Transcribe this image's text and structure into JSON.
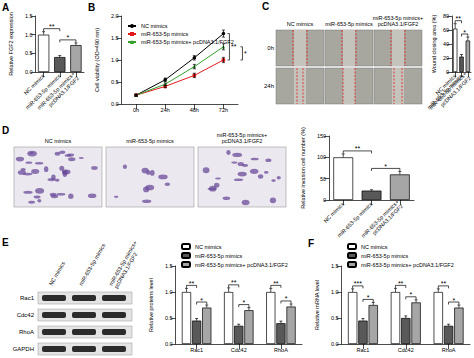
{
  "chart_data": [
    {
      "panel": "A",
      "type": "bar",
      "categories": [
        "NC mimics",
        "miR-653-5p mimics",
        "miR-653-5p mimics+ pcDNA3.1/FGF2"
      ],
      "values": [
        1.0,
        0.4,
        0.72
      ],
      "errors": [
        0.08,
        0.04,
        0.06
      ],
      "colors": [
        "#ffffff",
        "#595959",
        "#a6a6a6"
      ],
      "y_label": "Relative FGF2 expression",
      "ylim": [
        0,
        1.5
      ],
      "yticks": [
        {
          "value": 0,
          "label": "0.0"
        },
        0.5,
        {
          "value": 1,
          "label": "1.0"
        },
        1.5
      ],
      "grid": false,
      "annotations": [
        {
          "text": "**",
          "between": [
            0,
            1
          ]
        },
        {
          "text": "*",
          "between": [
            1,
            2
          ]
        }
      ]
    },
    {
      "panel": "B",
      "type": "line",
      "categories": [
        "0h",
        "24h",
        "48h",
        "72h"
      ],
      "series": [
        {
          "name": "NC mimics",
          "color": "#000000",
          "marker": "circle",
          "values": [
            0.2,
            0.55,
            1.05,
            1.6
          ],
          "errors": [
            0.02,
            0.04,
            0.05,
            0.08
          ]
        },
        {
          "name": "miR-653-5p mimics",
          "color": "#e31a1c",
          "marker": "rect",
          "values": [
            0.2,
            0.4,
            0.65,
            1.0
          ],
          "errors": [
            0.02,
            0.03,
            0.05,
            0.06
          ]
        },
        {
          "name": "miR-653-5p mimics+ pcDNA3.1/FGF2",
          "color": "#33a02c",
          "marker": "triangle",
          "values": [
            0.2,
            0.45,
            0.85,
            1.3
          ],
          "errors": [
            0.02,
            0.03,
            0.05,
            0.07
          ]
        }
      ],
      "y_label": "Cell viability (OD=490 nm)",
      "ylim": [
        0,
        2
      ],
      "yticks": [
        {
          "value": 0,
          "label": "0.0"
        },
        0.5,
        {
          "value": 1,
          "label": "1.0"
        },
        1.5,
        {
          "value": 2,
          "label": "2.0"
        }
      ],
      "legend": "upper left",
      "grid": false,
      "annotations": [
        {
          "text": "**",
          "group": 3,
          "between": [
            0,
            1
          ]
        },
        {
          "text": "*",
          "group": 3,
          "between": [
            1,
            2
          ]
        }
      ]
    },
    {
      "type": "bar",
      "categories": [
        "NC mimics",
        "miR-653-5p mimics",
        "miR-653-5p mimics+ pcDNA3.1/FGF2"
      ],
      "values": [
        62,
        22,
        45
      ],
      "errors": [
        7,
        3,
        5
      ],
      "colors": [
        "#ffffff",
        "#595959",
        "#a6a6a6"
      ],
      "y_label": "Wound closing area (%)",
      "ylim": [
        0,
        80
      ],
      "yticks": [
        0,
        20,
        40,
        60,
        80
      ],
      "grid": false,
      "annotations": [
        {
          "text": "**",
          "between": [
            0,
            1
          ]
        },
        {
          "text": "*",
          "between": [
            1,
            2
          ]
        }
      ]
    },
    {
      "type": "bar",
      "categories": [
        "NC mimics",
        "miR-653-5p mimics",
        "miR-653-5p mimics+ pcDNA3.1/FGF2"
      ],
      "values": [
        100,
        22,
        60
      ],
      "errors": [
        8,
        2,
        7
      ],
      "colors": [
        "#ffffff",
        "#595959",
        "#a6a6a6"
      ],
      "y_label": "Relative invasion cell number (%)",
      "ylim": [
        0,
        150
      ],
      "yticks": [
        0,
        50,
        100,
        150
      ],
      "grid": false,
      "annotations": [
        {
          "text": "**",
          "between": [
            0,
            1
          ]
        },
        {
          "text": "*",
          "between": [
            1,
            2
          ]
        }
      ]
    },
    {
      "type": "bar",
      "categories": [
        "Rac1",
        "Cdc42",
        "RhoA"
      ],
      "series": [
        {
          "name": "NC mimics",
          "color": "#ffffff",
          "values": [
            1.0,
            1.0,
            1.0
          ],
          "errors": [
            0.07,
            0.08,
            0.07
          ]
        },
        {
          "name": "miR-653-5p mimics",
          "color": "#595959",
          "values": [
            0.45,
            0.35,
            0.4
          ],
          "errors": [
            0.04,
            0.03,
            0.04
          ]
        },
        {
          "name": "miR-653-5p mimics+ pcDNA3.1/FGF2",
          "color": "#a6a6a6",
          "values": [
            0.7,
            0.65,
            0.72
          ],
          "errors": [
            0.05,
            0.05,
            0.05
          ]
        }
      ],
      "y_label": "Relative proteins level",
      "ylim": [
        0,
        1.5
      ],
      "yticks": [
        {
          "value": 0,
          "label": "0.0"
        },
        0.5,
        {
          "value": 1,
          "label": "1.0"
        },
        1.5
      ],
      "legend": "top",
      "grid": false,
      "annotations": [
        {
          "text": "**",
          "group": 0,
          "between": [
            0,
            1
          ]
        },
        {
          "text": "*",
          "group": 0,
          "between": [
            1,
            2
          ]
        },
        {
          "text": "**",
          "group": 1,
          "between": [
            0,
            1
          ]
        },
        {
          "text": "*",
          "group": 1,
          "between": [
            1,
            2
          ]
        },
        {
          "text": "**",
          "group": 2,
          "between": [
            0,
            1
          ]
        },
        {
          "text": "*",
          "group": 2,
          "between": [
            1,
            2
          ]
        }
      ]
    },
    {
      "panel": "F",
      "type": "bar",
      "categories": [
        "Rac1",
        "Cdc42",
        "RhoA"
      ],
      "series": [
        {
          "name": "NC mimics",
          "color": "#ffffff",
          "values": [
            1.0,
            1.0,
            1.0
          ],
          "errors": [
            0.06,
            0.07,
            0.06
          ]
        },
        {
          "name": "miR-653-5p mimics",
          "color": "#595959",
          "values": [
            0.45,
            0.5,
            0.35
          ],
          "errors": [
            0.04,
            0.04,
            0.03
          ]
        },
        {
          "name": "miR-653-5p mimics+ pcDNA3.1/FGF2",
          "color": "#a6a6a6",
          "values": [
            0.75,
            0.8,
            0.7
          ],
          "errors": [
            0.05,
            0.05,
            0.05
          ]
        }
      ],
      "y_label": "Relative mRNA level",
      "ylim": [
        0,
        1.5
      ],
      "yticks": [
        {
          "value": 0,
          "label": "0.0"
        },
        0.5,
        {
          "value": 1,
          "label": "1.0"
        },
        1.5
      ],
      "legend": "top",
      "grid": false,
      "annotations": [
        {
          "text": "***",
          "group": 0,
          "between": [
            0,
            1
          ]
        },
        {
          "text": "*",
          "group": 0,
          "between": [
            1,
            2
          ]
        },
        {
          "text": "**",
          "group": 1,
          "between": [
            0,
            1
          ]
        },
        {
          "text": "*",
          "group": 1,
          "between": [
            1,
            2
          ]
        },
        {
          "text": "**",
          "group": 2,
          "between": [
            0,
            1
          ]
        },
        {
          "text": "*",
          "group": 2,
          "between": [
            1,
            2
          ]
        }
      ]
    }
  ],
  "images": {
    "C": {
      "panel": "C",
      "columns": [
        "NC mimics",
        "miR-653-5p mimics",
        "miR-653-5p mimics+ pcDNA3.1/FGF2"
      ],
      "rows": [
        "0h",
        "24h"
      ]
    },
    "D": {
      "panel": "D",
      "columns": [
        "NC mimics",
        "miR-653-5p mimics",
        "miR-653-5p mimics+ pcDNA3.1/FGF2"
      ]
    },
    "E": {
      "panel": "E",
      "lanes": [
        "NC mimics",
        "miR-653-5p mimics",
        "miR-653-5p mimics+ pcDNA3.1/FGF2"
      ],
      "rows": [
        "Rac1",
        "Cdc42",
        "RhoA",
        "GAPDH"
      ]
    }
  }
}
